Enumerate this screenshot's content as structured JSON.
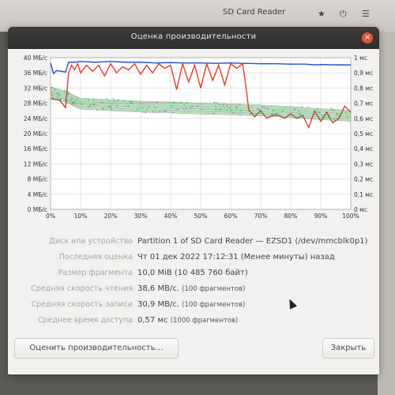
{
  "background": {
    "parent_title": "SD Card Reader",
    "icons": [
      "star-icon",
      "power-icon",
      "menu-icon"
    ]
  },
  "dialog": {
    "title": "Оценка производительности",
    "close_glyph": "×"
  },
  "chart_data": {
    "type": "line",
    "x_ticks": [
      "0%",
      "10%",
      "20%",
      "30%",
      "40%",
      "50%",
      "60%",
      "70%",
      "80%",
      "90%",
      "100%"
    ],
    "y_left_ticks": [
      "0 МБ/с",
      "4 МБ/с",
      "8 МБ/с",
      "12 МБ/с",
      "16 МБ/с",
      "20 МБ/с",
      "24 МБ/с",
      "28 МБ/с",
      "32 МБ/с",
      "36 МБ/с",
      "40 МБ/с"
    ],
    "y_right_ticks": [
      "0 мс",
      "0,1 мс",
      "0,2 мс",
      "0,3 мс",
      "0,4 мс",
      "0,5 мс",
      "0,6 мс",
      "0,7 мс",
      "0,8 мс",
      "0,9 мс",
      "1 мс"
    ],
    "ylim_left": [
      0,
      40
    ],
    "ylim_right": [
      0,
      1
    ],
    "xlim": [
      0,
      100
    ],
    "grid": true,
    "series": [
      {
        "color": "#1f4fd8",
        "x": [
          0,
          1,
          2,
          5,
          6,
          8,
          10,
          15,
          20,
          25,
          30,
          35,
          40,
          45,
          50,
          55,
          60,
          65,
          70,
          75,
          80,
          85,
          88,
          90,
          95,
          100
        ],
        "y": [
          38.6,
          35.8,
          36.6,
          36.2,
          38.8,
          38.8,
          39.0,
          38.8,
          39.0,
          38.8,
          38.8,
          38.6,
          38.7,
          38.6,
          38.6,
          38.5,
          38.6,
          38.5,
          38.4,
          38.4,
          38.3,
          38.3,
          38.1,
          38.2,
          38.1,
          38.1
        ]
      },
      {
        "color": "#e03b2e",
        "axis": "right",
        "x": [
          0,
          3,
          5,
          6,
          7,
          8,
          9,
          10,
          12,
          14,
          16,
          18,
          20,
          22,
          24,
          26,
          28,
          30,
          32,
          34,
          36,
          38,
          40,
          42,
          44,
          46,
          48,
          50,
          52,
          54,
          56,
          58,
          60,
          62,
          64,
          65,
          66,
          68,
          70,
          72,
          74,
          76,
          78,
          80,
          82,
          84,
          86,
          88,
          90,
          92,
          94,
          96,
          98,
          100
        ],
        "y": [
          0.73,
          0.72,
          0.67,
          0.9,
          0.95,
          0.92,
          0.96,
          0.9,
          0.95,
          0.91,
          0.95,
          0.88,
          0.96,
          0.9,
          0.94,
          0.92,
          0.96,
          0.89,
          0.95,
          0.9,
          0.96,
          0.93,
          0.95,
          0.79,
          0.96,
          0.84,
          0.95,
          0.8,
          0.96,
          0.85,
          0.95,
          0.82,
          0.96,
          0.93,
          0.96,
          0.82,
          0.66,
          0.61,
          0.65,
          0.6,
          0.62,
          0.62,
          0.6,
          0.63,
          0.6,
          0.62,
          0.54,
          0.65,
          0.58,
          0.64,
          0.57,
          0.6,
          0.68,
          0.64
        ]
      },
      {
        "color": "#2fae43",
        "x": [
          0,
          5,
          10,
          20,
          30,
          40,
          50,
          60,
          70,
          80,
          90,
          100
        ],
        "y": [
          31.0,
          29.8,
          28.0,
          27.6,
          27.2,
          27.0,
          26.7,
          26.5,
          26.2,
          25.8,
          25.2,
          24.8
        ]
      }
    ]
  },
  "info": {
    "rows": [
      {
        "label": "Диск или устройство",
        "value": "Partition 1 of SD Card Reader — EZSD1 (/dev/mmcblk0p1)",
        "note": ""
      },
      {
        "label": "Последняя оценка",
        "value": "Чт 01 дек 2022 17:12:31 (Менее минуты) назад",
        "note": ""
      },
      {
        "label": "Размер фрагмента",
        "value": "10,0 MiB (10 485 760 байт)",
        "note": ""
      },
      {
        "label": "Средняя скорость чтения",
        "value": "38,6 MB/c.",
        "note": "(100 фрагментов)"
      },
      {
        "label": "Средняя скорость записи",
        "value": "30,9 MB/c.",
        "note": "(100 фрагментов)"
      },
      {
        "label": "Среднее время доступа",
        "value": "0,57 мс",
        "note": "(1000 фрагментов)"
      }
    ]
  },
  "buttons": {
    "benchmark": "Оценить производительность…",
    "close": "Закрыть"
  }
}
